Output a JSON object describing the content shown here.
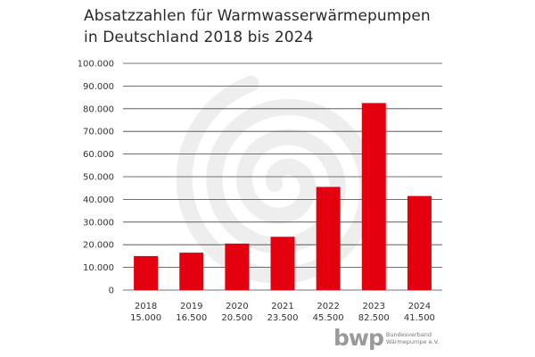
{
  "colors": {
    "bar": "#e3000f",
    "grid": "#444444",
    "watermark": "#eeeeee",
    "logo": "#9a9a9a"
  },
  "logo": {
    "word": "bwp",
    "sub_line1": "Bundesverband",
    "sub_line2": "Wärmepumpe e.V."
  },
  "chart_data": {
    "type": "bar",
    "title_line1": "Absatzzahlen für Warmwasserwärmepumpen",
    "title_line2": "in Deutschland 2018 bis 2024",
    "categories": [
      "2018",
      "2019",
      "2020",
      "2021",
      "2022",
      "2023",
      "2024"
    ],
    "value_labels": [
      "15.000",
      "16.500",
      "20.500",
      "23.500",
      "45.500",
      "82.500",
      "41.500"
    ],
    "values": [
      15000,
      16500,
      20500,
      23500,
      45500,
      82500,
      41500
    ],
    "ylim": [
      0,
      100000
    ],
    "yticks": [
      0,
      10000,
      20000,
      30000,
      40000,
      50000,
      60000,
      70000,
      80000,
      90000,
      100000
    ],
    "ytick_labels": [
      "0",
      "10.000",
      "20.000",
      "30.000",
      "40.000",
      "50.000",
      "60.000",
      "70.000",
      "80.000",
      "90.000",
      "100.000"
    ],
    "grid": true,
    "xlabel": "",
    "ylabel": ""
  }
}
